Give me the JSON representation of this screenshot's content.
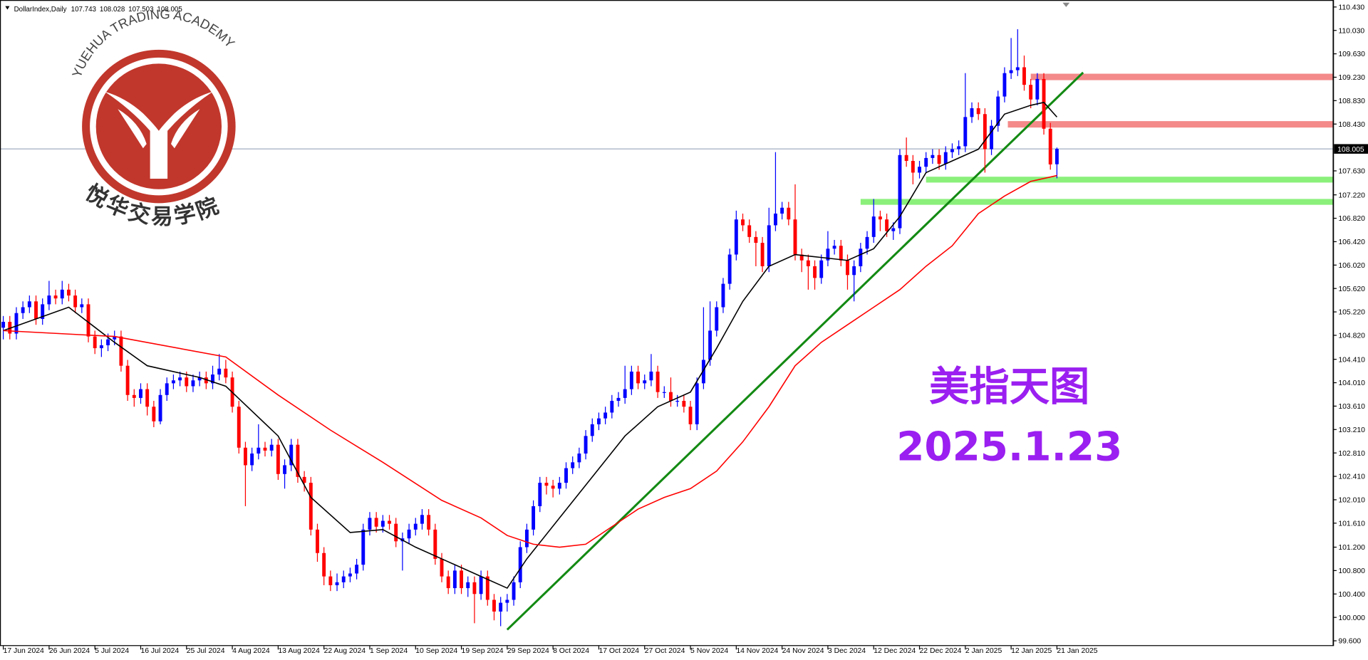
{
  "header": {
    "symbol": "DollarIndex,Daily"
  },
  "logo": {
    "text_en": "YUEHUA TRADING ACADEMY",
    "text_cn": "悦华交易学院"
  },
  "chart_data": {
    "type": "candlestick",
    "annotation_title": "美指天图",
    "annotation_date": "2025.1.23",
    "bull_color": "#0000ff",
    "bear_color": "#ff0000",
    "xlim": [
      -0.5,
      203.2
    ],
    "ylim": [
      99.6,
      110.43
    ],
    "xticks": [
      {
        "value": 0,
        "label": "17 Jun 2024"
      },
      {
        "value": 7,
        "label": "26 Jun 2024"
      },
      {
        "value": 14,
        "label": "5 Jul 2024"
      },
      {
        "value": 21,
        "label": "16 Jul 2024"
      },
      {
        "value": 28,
        "label": "25 Jul 2024"
      },
      {
        "value": 35,
        "label": "4 Aug 2024"
      },
      {
        "value": 42,
        "label": "13 Aug 2024"
      },
      {
        "value": 49,
        "label": "22 Aug 2024"
      },
      {
        "value": 56,
        "label": "1 Sep 2024"
      },
      {
        "value": 63,
        "label": "10 Sep 2024"
      },
      {
        "value": 70,
        "label": "19 Sep 2024"
      },
      {
        "value": 77,
        "label": "29 Sep 2024"
      },
      {
        "value": 84,
        "label": "8 Oct 2024"
      },
      {
        "value": 91,
        "label": "17 Oct 2024"
      },
      {
        "value": 98,
        "label": "27 Oct 2024"
      },
      {
        "value": 105,
        "label": "5 Nov 2024"
      },
      {
        "value": 112,
        "label": "14 Nov 2024"
      },
      {
        "value": 119,
        "label": "24 Nov 2024"
      },
      {
        "value": 126,
        "label": "3 Dec 2024"
      },
      {
        "value": 133,
        "label": "12 Dec 2024"
      },
      {
        "value": 140,
        "label": "22 Dec 2024"
      },
      {
        "value": 147,
        "label": "2 Jan 2025"
      },
      {
        "value": 154,
        "label": "12 Jan 2025"
      },
      {
        "value": 161,
        "label": "21 Jan 2025"
      }
    ],
    "yticks": [
      {
        "value": 110.43,
        "label": "110.430"
      },
      {
        "value": 110.03,
        "label": "110.030"
      },
      {
        "value": 109.63,
        "label": "109.630"
      },
      {
        "value": 109.23,
        "label": "109.230"
      },
      {
        "value": 108.83,
        "label": "108.830"
      },
      {
        "value": 108.43,
        "label": "108.430"
      },
      {
        "value": 107.63,
        "label": "107.630"
      },
      {
        "value": 107.22,
        "label": "107.220"
      },
      {
        "value": 106.82,
        "label": "106.820"
      },
      {
        "value": 106.42,
        "label": "106.420"
      },
      {
        "value": 106.02,
        "label": "106.020"
      },
      {
        "value": 105.62,
        "label": "105.620"
      },
      {
        "value": 105.22,
        "label": "105.220"
      },
      {
        "value": 104.82,
        "label": "104.820"
      },
      {
        "value": 104.41,
        "label": "104.410"
      },
      {
        "value": 104.01,
        "label": "104.010"
      },
      {
        "value": 103.61,
        "label": "103.610"
      },
      {
        "value": 103.21,
        "label": "103.210"
      },
      {
        "value": 102.81,
        "label": "102.810"
      },
      {
        "value": 102.41,
        "label": "102.410"
      },
      {
        "value": 102.01,
        "label": "102.010"
      },
      {
        "value": 101.61,
        "label": "101.610"
      },
      {
        "value": 101.2,
        "label": "101.200"
      },
      {
        "value": 100.8,
        "label": "100.800"
      },
      {
        "value": 100.4,
        "label": "100.400"
      },
      {
        "value": 100,
        "label": "100.000"
      },
      {
        "value": 99.6,
        "label": "99.600"
      }
    ],
    "candles": [
      [
        104.95,
        105.15,
        104.75,
        105.05
      ],
      [
        105.05,
        105.15,
        104.75,
        104.85
      ],
      [
        104.85,
        105.3,
        104.75,
        105.2
      ],
      [
        105.2,
        105.4,
        105.1,
        105.3
      ],
      [
        105.3,
        105.5,
        105.2,
        105.4
      ],
      [
        105.4,
        105.5,
        105.0,
        105.1
      ],
      [
        105.1,
        105.45,
        105.0,
        105.35
      ],
      [
        105.35,
        105.75,
        105.25,
        105.5
      ],
      [
        105.5,
        105.6,
        105.35,
        105.45
      ],
      [
        105.45,
        105.75,
        105.35,
        105.6
      ],
      [
        105.6,
        105.7,
        105.4,
        105.5
      ],
      [
        105.5,
        105.6,
        105.2,
        105.3
      ],
      [
        105.3,
        105.45,
        105.2,
        105.35
      ],
      [
        105.35,
        105.45,
        104.7,
        104.8
      ],
      [
        104.8,
        104.9,
        104.5,
        104.6
      ],
      [
        104.6,
        104.75,
        104.45,
        104.65
      ],
      [
        104.65,
        104.85,
        104.55,
        104.75
      ],
      [
        104.75,
        104.9,
        104.65,
        104.8
      ],
      [
        104.8,
        104.9,
        104.2,
        104.3
      ],
      [
        104.3,
        104.4,
        103.7,
        103.8
      ],
      [
        103.8,
        103.9,
        103.6,
        103.75
      ],
      [
        103.75,
        104.0,
        103.65,
        103.9
      ],
      [
        103.9,
        104.0,
        103.45,
        103.6
      ],
      [
        103.6,
        103.7,
        103.25,
        103.35
      ],
      [
        103.35,
        103.9,
        103.3,
        103.8
      ],
      [
        103.8,
        104.1,
        103.7,
        104.0
      ],
      [
        104.0,
        104.15,
        103.9,
        104.05
      ],
      [
        104.05,
        104.2,
        103.95,
        104.1
      ],
      [
        104.1,
        104.2,
        103.85,
        103.95
      ],
      [
        103.95,
        104.15,
        103.85,
        104.05
      ],
      [
        104.05,
        104.2,
        103.95,
        104.1
      ],
      [
        104.1,
        104.2,
        103.9,
        104.0
      ],
      [
        104.0,
        104.3,
        103.9,
        104.15
      ],
      [
        104.15,
        104.5,
        104.05,
        104.25
      ],
      [
        104.25,
        104.4,
        104.0,
        104.1
      ],
      [
        104.1,
        104.2,
        103.5,
        103.6
      ],
      [
        103.6,
        103.7,
        102.8,
        102.9
      ],
      [
        102.9,
        103.0,
        101.9,
        102.6
      ],
      [
        102.6,
        102.9,
        102.5,
        102.8
      ],
      [
        102.8,
        103.3,
        102.7,
        102.9
      ],
      [
        102.9,
        103.0,
        102.75,
        102.85
      ],
      [
        102.85,
        103.05,
        102.75,
        102.95
      ],
      [
        102.95,
        103.05,
        102.35,
        102.45
      ],
      [
        102.45,
        102.7,
        102.2,
        102.6
      ],
      [
        102.6,
        103.05,
        102.5,
        102.95
      ],
      [
        102.95,
        103.05,
        102.3,
        102.4
      ],
      [
        102.4,
        102.5,
        102.15,
        102.3
      ],
      [
        102.3,
        102.4,
        101.4,
        101.5
      ],
      [
        101.5,
        101.6,
        100.95,
        101.1
      ],
      [
        101.1,
        101.2,
        100.55,
        100.7
      ],
      [
        100.7,
        100.8,
        100.45,
        100.55
      ],
      [
        100.55,
        100.75,
        100.45,
        100.6
      ],
      [
        100.6,
        100.8,
        100.5,
        100.7
      ],
      [
        100.7,
        100.85,
        100.6,
        100.75
      ],
      [
        100.75,
        101.0,
        100.65,
        100.9
      ],
      [
        100.9,
        101.6,
        100.8,
        101.5
      ],
      [
        101.5,
        101.8,
        101.4,
        101.7
      ],
      [
        101.7,
        101.8,
        101.45,
        101.55
      ],
      [
        101.55,
        101.75,
        101.45,
        101.65
      ],
      [
        101.65,
        101.75,
        101.5,
        101.6
      ],
      [
        101.6,
        101.7,
        101.2,
        101.3
      ],
      [
        101.3,
        101.45,
        100.8,
        101.35
      ],
      [
        101.35,
        101.6,
        101.25,
        101.5
      ],
      [
        101.5,
        101.7,
        101.4,
        101.6
      ],
      [
        101.6,
        101.85,
        101.5,
        101.75
      ],
      [
        101.75,
        101.85,
        101.4,
        101.5
      ],
      [
        101.5,
        101.6,
        100.9,
        101.0
      ],
      [
        101.0,
        101.1,
        100.6,
        100.7
      ],
      [
        100.7,
        100.8,
        100.4,
        100.5
      ],
      [
        100.5,
        100.9,
        100.4,
        100.8
      ],
      [
        100.8,
        100.9,
        100.4,
        100.5
      ],
      [
        100.5,
        100.7,
        100.35,
        100.6
      ],
      [
        100.6,
        100.7,
        99.9,
        100.4
      ],
      [
        100.4,
        100.8,
        100.3,
        100.7
      ],
      [
        100.7,
        100.8,
        100.2,
        100.3
      ],
      [
        100.3,
        100.4,
        99.95,
        100.1
      ],
      [
        100.1,
        100.35,
        99.85,
        100.25
      ],
      [
        100.25,
        100.4,
        100.1,
        100.3
      ],
      [
        100.3,
        100.7,
        100.2,
        100.6
      ],
      [
        100.6,
        101.3,
        100.5,
        101.2
      ],
      [
        101.2,
        101.6,
        101.1,
        101.5
      ],
      [
        101.5,
        102.0,
        101.4,
        101.9
      ],
      [
        101.9,
        102.4,
        101.8,
        102.3
      ],
      [
        102.3,
        102.4,
        102.1,
        102.25
      ],
      [
        102.25,
        102.35,
        102.05,
        102.2
      ],
      [
        102.2,
        102.4,
        102.1,
        102.3
      ],
      [
        102.3,
        102.65,
        102.2,
        102.55
      ],
      [
        102.55,
        102.75,
        102.45,
        102.65
      ],
      [
        102.65,
        102.9,
        102.55,
        102.8
      ],
      [
        102.8,
        103.2,
        102.7,
        103.1
      ],
      [
        103.1,
        103.4,
        103.0,
        103.3
      ],
      [
        103.3,
        103.5,
        103.2,
        103.4
      ],
      [
        103.4,
        103.6,
        103.3,
        103.5
      ],
      [
        103.5,
        103.8,
        103.4,
        103.7
      ],
      [
        103.7,
        103.85,
        103.6,
        103.75
      ],
      [
        103.75,
        104.3,
        103.65,
        103.9
      ],
      [
        103.9,
        104.3,
        103.8,
        104.2
      ],
      [
        104.2,
        104.3,
        103.9,
        104.0
      ],
      [
        104.0,
        104.15,
        103.9,
        104.05
      ],
      [
        104.05,
        104.5,
        103.95,
        104.2
      ],
      [
        104.2,
        104.3,
        103.75,
        103.85
      ],
      [
        103.85,
        103.95,
        103.75,
        103.85
      ],
      [
        103.85,
        104.1,
        103.6,
        103.7
      ],
      [
        103.7,
        103.8,
        103.6,
        103.7
      ],
      [
        103.7,
        103.8,
        103.5,
        103.6
      ],
      [
        103.6,
        103.7,
        103.2,
        103.3
      ],
      [
        103.3,
        104.1,
        103.2,
        104.0
      ],
      [
        104.0,
        105.3,
        103.9,
        104.4
      ],
      [
        104.4,
        105.4,
        104.3,
        104.9
      ],
      [
        104.9,
        105.4,
        104.8,
        105.3
      ],
      [
        105.3,
        105.8,
        105.2,
        105.7
      ],
      [
        105.7,
        106.3,
        105.6,
        106.2
      ],
      [
        106.2,
        106.95,
        106.1,
        106.8
      ],
      [
        106.8,
        106.9,
        106.6,
        106.7
      ],
      [
        106.7,
        106.8,
        106.4,
        106.5
      ],
      [
        106.5,
        106.6,
        106.0,
        106.4
      ],
      [
        106.4,
        106.5,
        105.9,
        106.0
      ],
      [
        106.0,
        107.0,
        105.9,
        106.7
      ],
      [
        106.7,
        107.95,
        106.6,
        106.9
      ],
      [
        106.9,
        107.1,
        106.8,
        107.0
      ],
      [
        107.0,
        107.1,
        106.7,
        106.8
      ],
      [
        106.8,
        107.4,
        106.1,
        106.2
      ],
      [
        106.2,
        106.3,
        105.9,
        106.1
      ],
      [
        106.1,
        106.2,
        105.6,
        106.0
      ],
      [
        106.0,
        106.1,
        105.6,
        105.8
      ],
      [
        105.8,
        106.2,
        105.7,
        106.1
      ],
      [
        106.1,
        106.6,
        106.0,
        106.3
      ],
      [
        106.3,
        106.45,
        106.2,
        106.35
      ],
      [
        106.35,
        106.45,
        106.0,
        106.1
      ],
      [
        106.1,
        106.2,
        105.6,
        105.85
      ],
      [
        105.85,
        106.1,
        105.4,
        106.0
      ],
      [
        106.0,
        106.4,
        105.9,
        106.3
      ],
      [
        106.3,
        106.6,
        106.2,
        106.5
      ],
      [
        106.5,
        107.15,
        106.4,
        106.85
      ],
      [
        106.85,
        106.95,
        106.6,
        106.8
      ],
      [
        106.8,
        106.9,
        106.5,
        106.6
      ],
      [
        106.6,
        106.75,
        106.45,
        106.65
      ],
      [
        106.65,
        108.0,
        106.55,
        107.9
      ],
      [
        107.9,
        108.2,
        107.7,
        107.8
      ],
      [
        107.8,
        107.9,
        107.4,
        107.6
      ],
      [
        107.6,
        107.8,
        107.5,
        107.7
      ],
      [
        107.7,
        107.95,
        107.6,
        107.85
      ],
      [
        107.85,
        108.0,
        107.75,
        107.9
      ],
      [
        107.9,
        108.0,
        107.65,
        107.75
      ],
      [
        107.75,
        108.05,
        107.65,
        107.95
      ],
      [
        107.95,
        108.1,
        107.85,
        108.0
      ],
      [
        108.0,
        108.15,
        107.9,
        108.05
      ],
      [
        108.05,
        109.3,
        107.95,
        108.55
      ],
      [
        108.55,
        108.8,
        108.45,
        108.7
      ],
      [
        108.7,
        108.8,
        108.5,
        108.6
      ],
      [
        108.6,
        108.7,
        107.6,
        108.0
      ],
      [
        108.0,
        108.5,
        107.9,
        108.4
      ],
      [
        108.4,
        109.0,
        108.3,
        108.9
      ],
      [
        108.9,
        109.4,
        108.8,
        109.3
      ],
      [
        109.3,
        109.9,
        109.2,
        109.35
      ],
      [
        109.35,
        110.05,
        109.25,
        109.4
      ],
      [
        109.4,
        109.6,
        109.0,
        109.1
      ],
      [
        109.1,
        109.2,
        108.7,
        108.85
      ],
      [
        108.85,
        109.3,
        108.75,
        109.2
      ],
      [
        109.2,
        109.3,
        108.25,
        108.35
      ],
      [
        108.35,
        108.45,
        107.65,
        107.74
      ],
      [
        107.743,
        108.028,
        107.503,
        108.005
      ]
    ],
    "moving_averages": [
      {
        "color": "#000000",
        "x": [
          0,
          10,
          17,
          22,
          30,
          34,
          42,
          47,
          53,
          58,
          63,
          68,
          73,
          77,
          80,
          85,
          90,
          95,
          100,
          105,
          109,
          113,
          117,
          121,
          125,
          129,
          133,
          137,
          141,
          145,
          149,
          153,
          157,
          159,
          161
        ],
        "values": [
          104.9,
          105.3,
          104.7,
          104.3,
          104.1,
          103.95,
          103.1,
          102.05,
          101.45,
          101.5,
          101.2,
          100.95,
          100.7,
          100.5,
          101.0,
          101.7,
          102.4,
          103.1,
          103.6,
          103.85,
          104.6,
          105.4,
          106.0,
          106.2,
          106.15,
          106.1,
          106.3,
          106.85,
          107.6,
          107.8,
          108.0,
          108.6,
          108.75,
          108.8,
          108.55
        ]
      },
      {
        "color": "#ff0000",
        "x": [
          0,
          17,
          34,
          42,
          50,
          58,
          67,
          73,
          77,
          81,
          85,
          89,
          93,
          97,
          101,
          105,
          109,
          113,
          117,
          121,
          125,
          129,
          133,
          137,
          141,
          145,
          149,
          153,
          157,
          161
        ],
        "values": [
          104.9,
          104.8,
          104.45,
          103.8,
          103.2,
          102.65,
          102.0,
          101.7,
          101.4,
          101.25,
          101.2,
          101.25,
          101.55,
          101.85,
          102.05,
          102.2,
          102.5,
          103.0,
          103.6,
          104.3,
          104.7,
          105.0,
          105.3,
          105.6,
          106.0,
          106.35,
          106.9,
          107.2,
          107.45,
          107.55
        ]
      }
    ],
    "trendline": {
      "color": "#138a13",
      "x": [
        77,
        165
      ],
      "values": [
        99.79,
        109.31
      ]
    },
    "zones": [
      {
        "from": 157,
        "ylim": [
          109.18,
          109.29
        ],
        "color": "#f48a8a"
      },
      {
        "from": 153.5,
        "ylim": [
          108.37,
          108.48
        ],
        "color": "#f48a8a"
      },
      {
        "from": 141,
        "ylim": [
          107.43,
          107.53
        ],
        "color": "#8af07a"
      },
      {
        "from": 131,
        "ylim": [
          107.05,
          107.15
        ],
        "color": "#8af07a"
      }
    ]
  }
}
